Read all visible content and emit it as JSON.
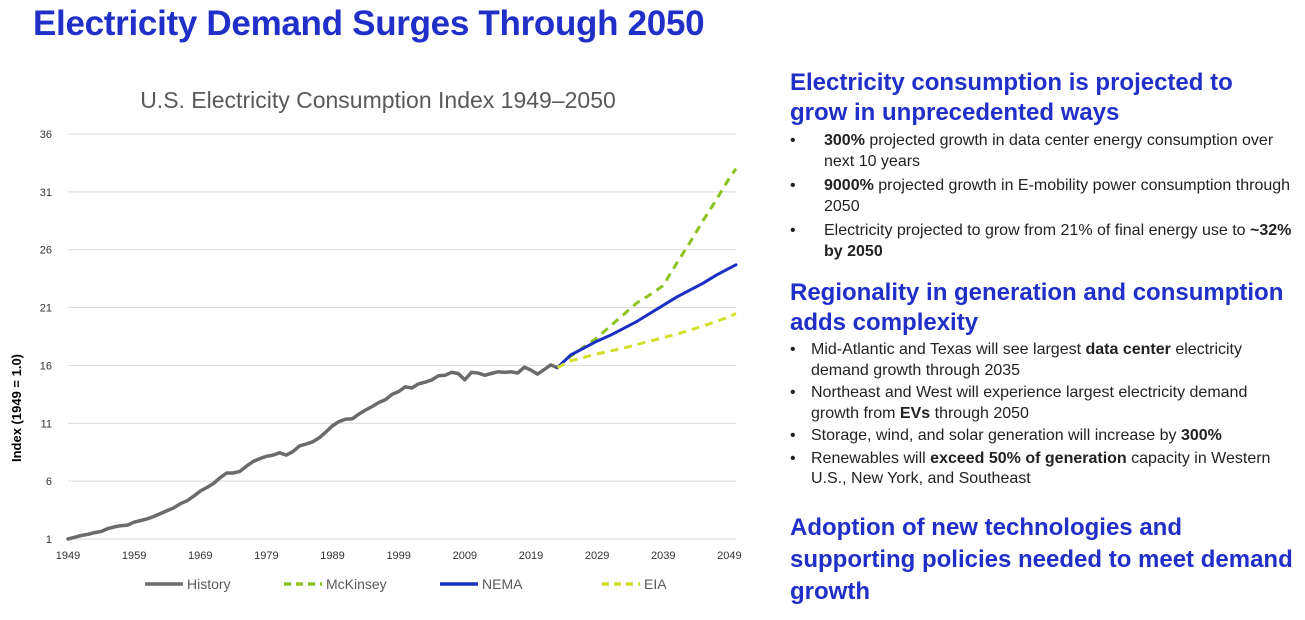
{
  "page": {
    "title": "Electricity Demand Surges Through 2050"
  },
  "chart_data": {
    "type": "line",
    "title": "U.S. Electricity Consumption Index 1949–2050",
    "xlabel": "",
    "ylabel": "Index (1949 = 1.0)",
    "xlim": [
      1949,
      2050
    ],
    "ylim": [
      1,
      36
    ],
    "x_ticks": [
      1949,
      1959,
      1969,
      1979,
      1989,
      1999,
      2009,
      2019,
      2029,
      2039,
      2049
    ],
    "y_ticks": [
      1,
      6,
      11,
      16,
      21,
      26,
      31,
      36
    ],
    "grid": true,
    "legend": "bottom",
    "series": [
      {
        "name": "History",
        "color": "#6b6b6b",
        "style": "solid",
        "x": [
          1949,
          1950,
          1951,
          1952,
          1953,
          1954,
          1955,
          1956,
          1957,
          1958,
          1959,
          1960,
          1961,
          1962,
          1963,
          1964,
          1965,
          1966,
          1967,
          1968,
          1969,
          1970,
          1971,
          1972,
          1973,
          1974,
          1975,
          1976,
          1977,
          1978,
          1979,
          1980,
          1981,
          1982,
          1983,
          1984,
          1985,
          1986,
          1987,
          1988,
          1989,
          1990,
          1991,
          1992,
          1993,
          1994,
          1995,
          1996,
          1997,
          1998,
          1999,
          2000,
          2001,
          2002,
          2003,
          2004,
          2005,
          2006,
          2007,
          2008,
          2009,
          2010,
          2011,
          2012,
          2013,
          2014,
          2015,
          2016,
          2017,
          2018,
          2019,
          2020,
          2021,
          2022,
          2023
        ],
        "y": [
          1.0,
          1.15,
          1.3,
          1.4,
          1.55,
          1.65,
          1.9,
          2.05,
          2.15,
          2.2,
          2.45,
          2.6,
          2.75,
          2.95,
          3.2,
          3.45,
          3.7,
          4.05,
          4.3,
          4.7,
          5.15,
          5.45,
          5.8,
          6.3,
          6.7,
          6.7,
          6.85,
          7.3,
          7.7,
          7.95,
          8.15,
          8.25,
          8.45,
          8.25,
          8.55,
          9.05,
          9.2,
          9.4,
          9.75,
          10.25,
          10.8,
          11.15,
          11.35,
          11.4,
          11.8,
          12.15,
          12.45,
          12.8,
          13.05,
          13.5,
          13.75,
          14.15,
          14.05,
          14.4,
          14.55,
          14.75,
          15.1,
          15.15,
          15.4,
          15.3,
          14.75,
          15.4,
          15.35,
          15.15,
          15.3,
          15.45,
          15.4,
          15.45,
          15.35,
          15.85,
          15.6,
          15.25,
          15.65,
          16.05,
          15.8
        ]
      },
      {
        "name": "McKinsey",
        "color": "#8dc21f",
        "style": "dashed",
        "x": [
          2023,
          2025,
          2027,
          2029,
          2031,
          2033,
          2035,
          2037,
          2039,
          2041,
          2043,
          2045,
          2047,
          2049,
          2050
        ],
        "y": [
          15.8,
          16.8,
          17.6,
          18.4,
          19.4,
          20.4,
          21.4,
          22.1,
          22.9,
          24.8,
          26.6,
          28.5,
          30.3,
          32.2,
          33.0
        ]
      },
      {
        "name": "NEMA",
        "color": "#1a2fc3",
        "style": "solid",
        "x": [
          2023,
          2025,
          2027,
          2029,
          2031,
          2033,
          2035,
          2037,
          2039,
          2041,
          2043,
          2045,
          2047,
          2049,
          2050
        ],
        "y": [
          15.8,
          16.9,
          17.5,
          18.1,
          18.6,
          19.2,
          19.8,
          20.5,
          21.2,
          21.9,
          22.5,
          23.1,
          23.8,
          24.4,
          24.7
        ]
      },
      {
        "name": "EIA",
        "color": "#d2e02a",
        "style": "dashed",
        "x": [
          2023,
          2025,
          2029,
          2033,
          2037,
          2041,
          2045,
          2049,
          2050
        ],
        "y": [
          15.8,
          16.4,
          17.0,
          17.5,
          18.1,
          18.7,
          19.4,
          20.2,
          20.5
        ]
      }
    ]
  },
  "sections": [
    {
      "heading": "Electricity consumption is projected to grow in unprecedented ways",
      "bullets": [
        {
          "bold_lead": "300%",
          "text": " projected growth in data center energy consumption over next 10 years"
        },
        {
          "bold_lead": "9000%",
          "text": " projected growth in E-mobility power consumption through 2050"
        },
        {
          "text": "Electricity projected to grow from 21% of final energy use to ",
          "bold_end": "~32% by 2050"
        }
      ]
    },
    {
      "heading": "Regionality in generation and consumption adds complexity",
      "bullets": [
        {
          "text": "Mid-Atlantic and Texas will see largest ",
          "bold_mid": "data center",
          "text_after": " electricity demand growth through 2035"
        },
        {
          "text": "Northeast and West will experience largest electricity demand growth from ",
          "bold_mid": "EVs",
          "text_after": " through 2050"
        },
        {
          "text": "Storage, wind, and solar generation will increase by ",
          "bold_end": "300%"
        },
        {
          "text": "Renewables will ",
          "bold_mid": "exceed 50% of generation",
          "text_after": " capacity in Western U.S., New York, and Southeast"
        }
      ]
    },
    {
      "heading": "Adoption of new technologies and supporting policies needed to meet demand growth"
    }
  ]
}
